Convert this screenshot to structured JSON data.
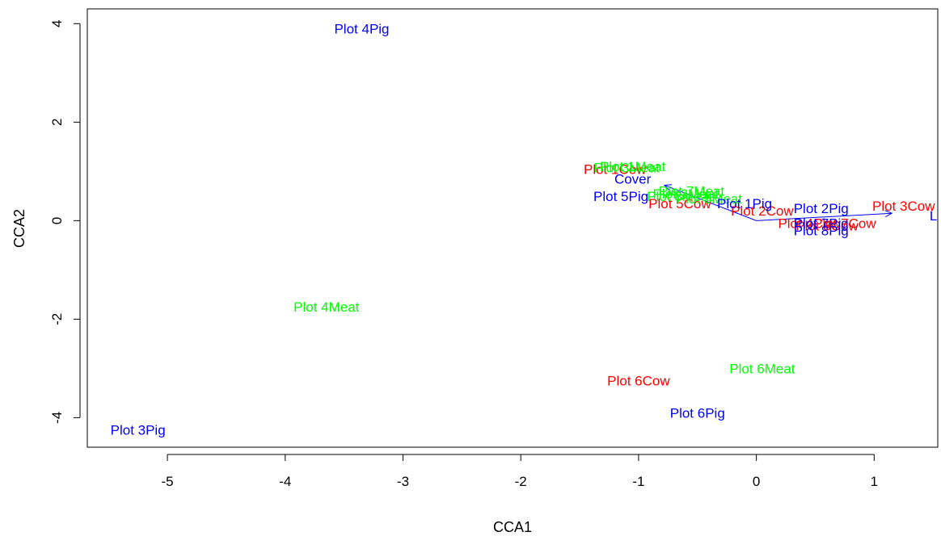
{
  "chart_data": {
    "type": "scatter",
    "title": "",
    "xlabel": "CCA1",
    "ylabel": "CCA2",
    "xlim": [
      -5.68,
      1.54
    ],
    "ylim": [
      -4.6,
      4.3
    ],
    "x_ticks": [
      -5,
      -4,
      -3,
      -2,
      -1,
      0,
      1
    ],
    "x_tick_labels": [
      "-5",
      "-4",
      "-3",
      "-2",
      "-1",
      "0",
      "1"
    ],
    "y_ticks": [
      -4,
      -2,
      0,
      2,
      4
    ],
    "y_tick_labels": [
      "-4",
      "-2",
      "0",
      "2",
      "4"
    ],
    "grid": false,
    "legend": "none",
    "series": [
      {
        "color": "#ff0000",
        "points": [
          {
            "label": "Plot 1Cow",
            "x": -1.2,
            "y": 1.05
          },
          {
            "label": "Plot 2Cow",
            "x": 0.05,
            "y": 0.2
          },
          {
            "label": "Plot 3Cow",
            "x": 1.25,
            "y": 0.3
          },
          {
            "label": "Plot 4Cow",
            "x": 0.45,
            "y": -0.05
          },
          {
            "label": "Plot 5Cow",
            "x": -0.65,
            "y": 0.35
          },
          {
            "label": "Plot 6Cow",
            "x": -1.0,
            "y": -3.25
          },
          {
            "label": "Plot 7Cow",
            "x": 0.75,
            "y": -0.05
          },
          {
            "label": "Plot 8Cow",
            "x": 0.6,
            "y": -0.1
          }
        ]
      },
      {
        "color": "#00ff00",
        "points": [
          {
            "label": "Plot 1Meat",
            "x": -1.05,
            "y": 1.1
          },
          {
            "label": "Plot 2Meat",
            "x": -0.6,
            "y": 0.55
          },
          {
            "label": "Plot 3Meat",
            "x": -1.1,
            "y": 1.08
          },
          {
            "label": "Plot 4Meat",
            "x": -3.65,
            "y": -1.75
          },
          {
            "label": "Plot 5Meat",
            "x": -0.4,
            "y": 0.45
          },
          {
            "label": "Plot 6Meat",
            "x": 0.05,
            "y": -3.0
          },
          {
            "label": "Plot 7Meat",
            "x": -0.55,
            "y": 0.6
          },
          {
            "label": "Plot 8Meat",
            "x": -0.65,
            "y": 0.5
          }
        ]
      },
      {
        "color": "#0000ff",
        "points": [
          {
            "label": "Plot 1Pig",
            "x": -0.1,
            "y": 0.35
          },
          {
            "label": "Plot 2Pig",
            "x": 0.55,
            "y": 0.25
          },
          {
            "label": "Plot 3Pig",
            "x": -5.25,
            "y": -4.25
          },
          {
            "label": "Plot 4Pig",
            "x": -3.35,
            "y": 3.9
          },
          {
            "label": "Plot 5Pig",
            "x": -1.15,
            "y": 0.5
          },
          {
            "label": "Plot 6Pig",
            "x": -0.5,
            "y": -3.9
          },
          {
            "label": "Plot 7Pig",
            "x": 0.55,
            "y": -0.05
          },
          {
            "label": "Plot 8Pig",
            "x": 0.55,
            "y": -0.2
          }
        ]
      }
    ],
    "biplot_arrows": [
      {
        "label": "Cover",
        "x": -0.78,
        "y": 0.72,
        "label_x": -1.05,
        "label_y": 0.85
      },
      {
        "label": "Litter",
        "x": 1.15,
        "y": 0.15,
        "label_x": 1.6,
        "label_y": 0.1
      }
    ],
    "arrow_color": "#0000ff"
  }
}
